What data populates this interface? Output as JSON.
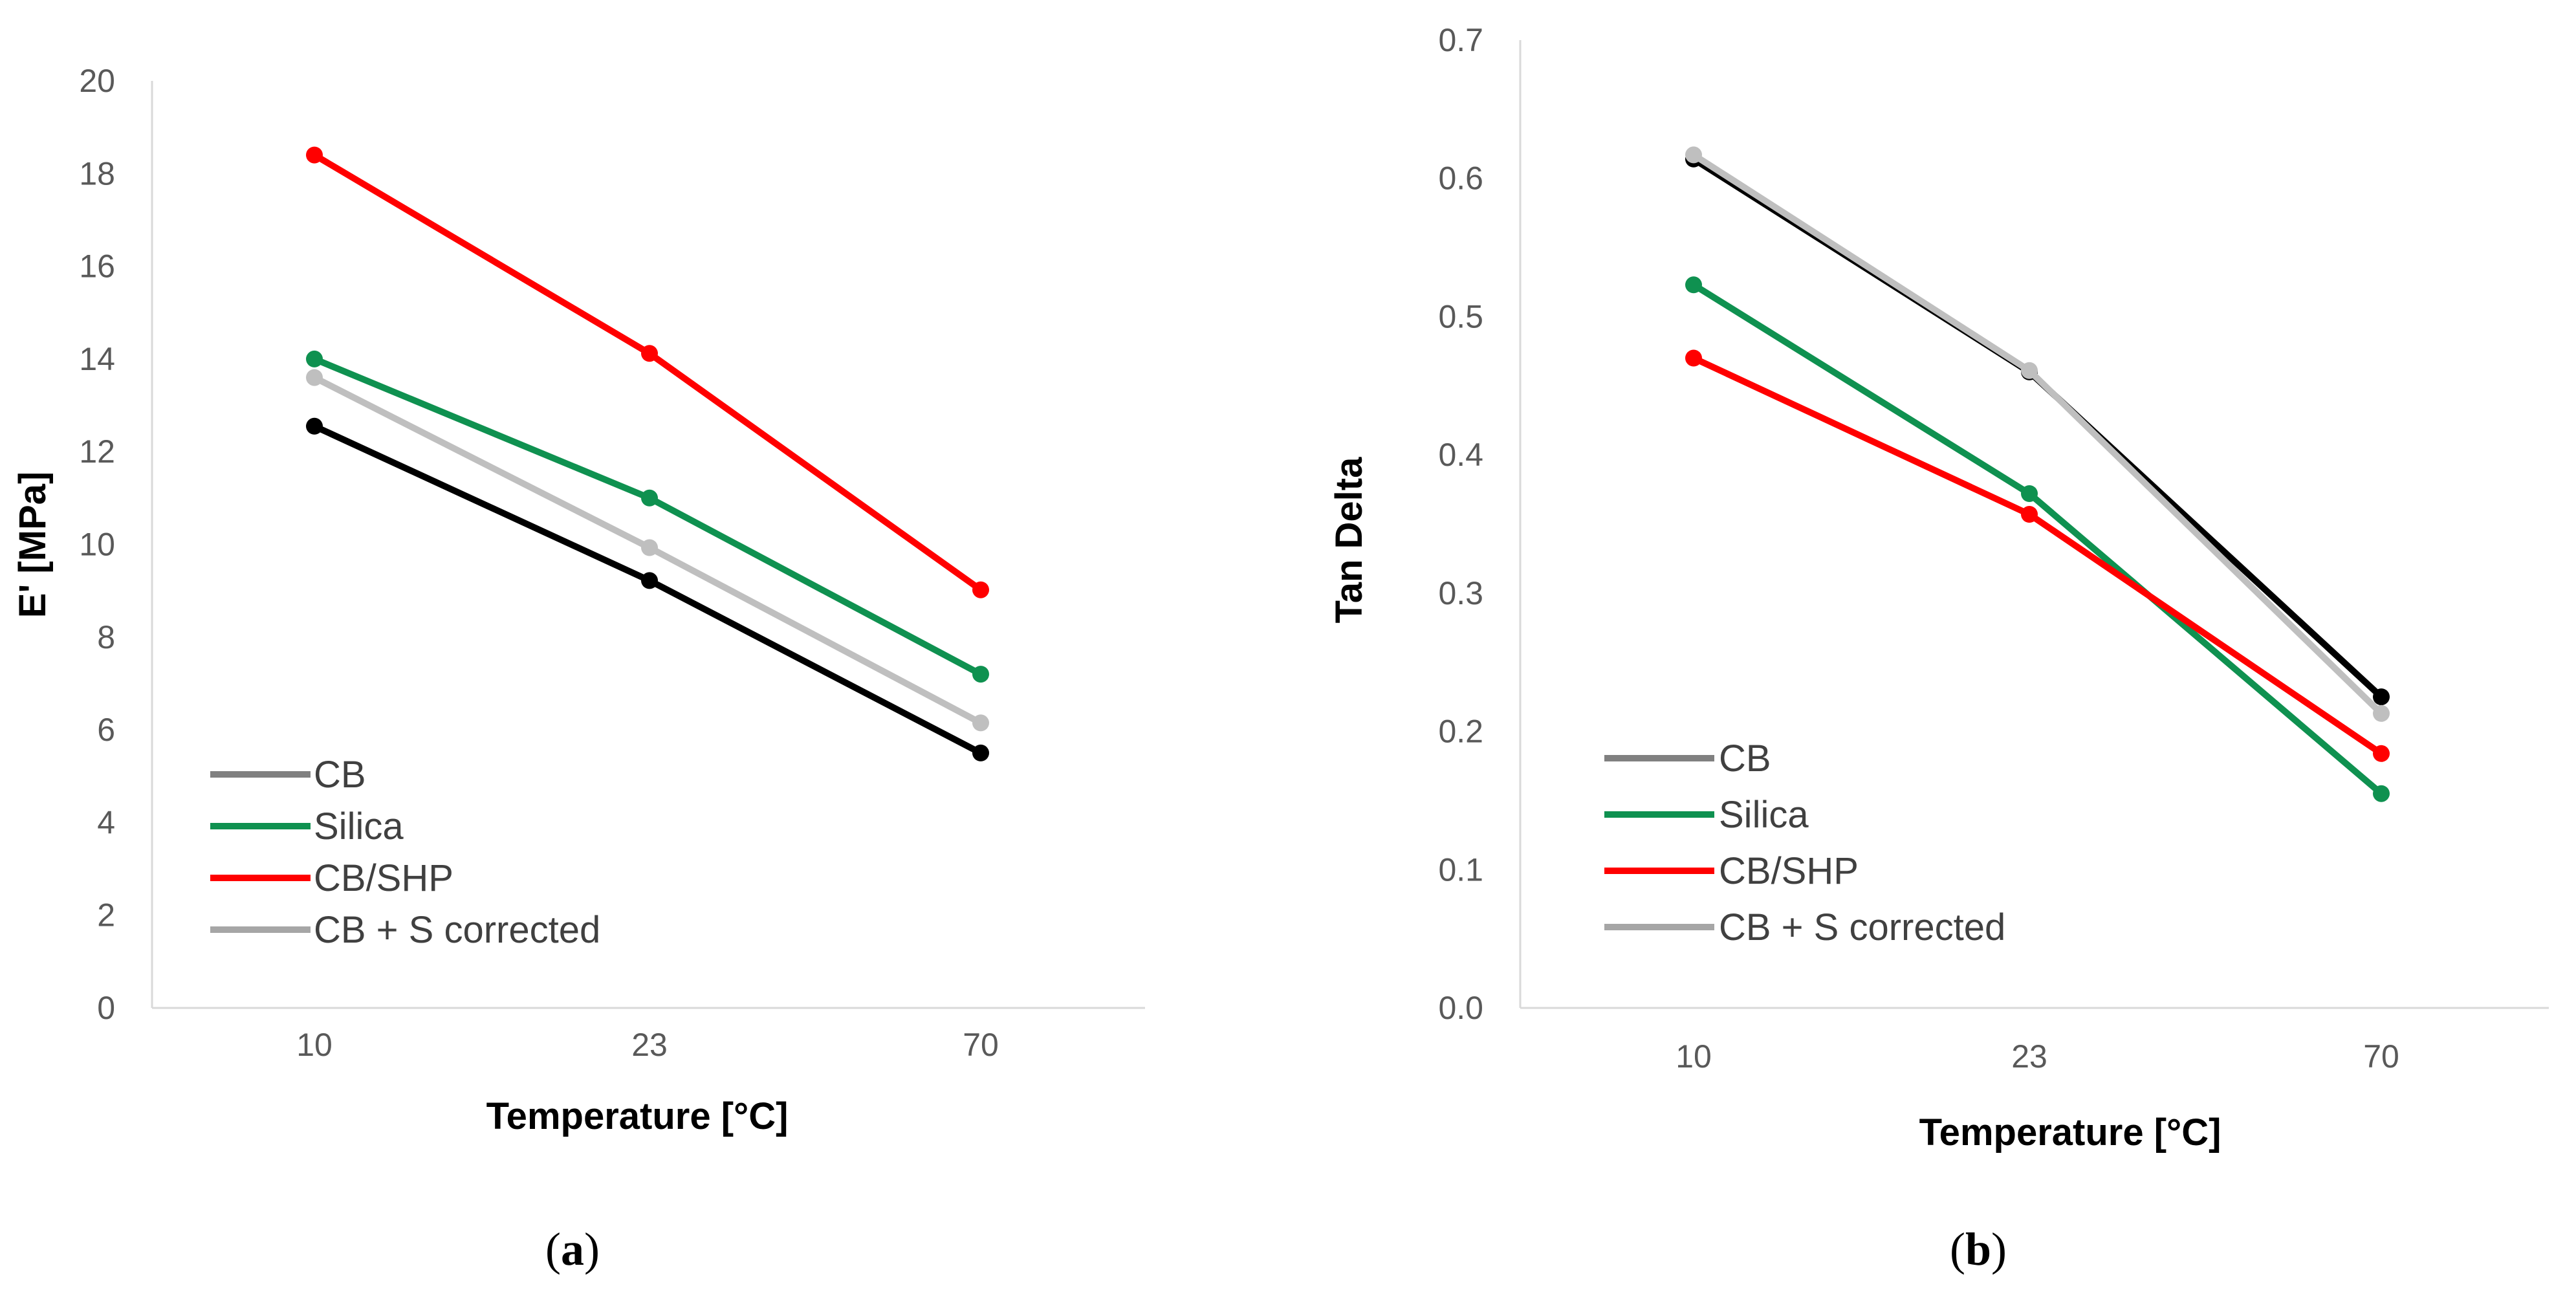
{
  "chart_data": [
    {
      "type": "line",
      "panel_label": "(a)",
      "panel_letter": "a",
      "categories": [
        "10",
        "23",
        "70"
      ],
      "xlabel": "Temperature [°C]",
      "ylabel": "E' [MPa]",
      "ylim": [
        0,
        20
      ],
      "yticks": [
        "0",
        "2",
        "4",
        "6",
        "8",
        "10",
        "12",
        "14",
        "16",
        "18",
        "20"
      ],
      "grid": false,
      "legend_position": "bottom-left",
      "series": [
        {
          "name": "CB",
          "color": "#000000",
          "legend_color": "#808080",
          "values": [
            12.55,
            9.22,
            5.5
          ]
        },
        {
          "name": "Silica",
          "color": "#0f9150",
          "legend_color": "#0f9150",
          "values": [
            14.0,
            11.0,
            7.2
          ]
        },
        {
          "name": "CB/SHP",
          "color": "#ff0000",
          "legend_color": "#ff0000",
          "values": [
            18.4,
            14.12,
            9.02
          ]
        },
        {
          "name": "CB + S corrected",
          "color": "#bfbfbf",
          "legend_color": "#a6a6a6",
          "values": [
            13.6,
            9.93,
            6.15
          ]
        }
      ]
    },
    {
      "type": "line",
      "panel_label": "(b)",
      "panel_letter": "b",
      "categories": [
        "10",
        "23",
        "70"
      ],
      "xlabel": "Temperature [°C]",
      "ylabel": "Tan Delta",
      "ylim": [
        0,
        0.7
      ],
      "yticks": [
        "0.0",
        "0.1",
        "0.2",
        "0.3",
        "0.4",
        "0.5",
        "0.6",
        "0.7"
      ],
      "grid": false,
      "legend_position": "bottom-left",
      "series": [
        {
          "name": "CB",
          "color": "#000000",
          "legend_color": "#808080",
          "values": [
            0.614,
            0.46,
            0.225
          ]
        },
        {
          "name": "Silica",
          "color": "#0f9150",
          "legend_color": "#0f9150",
          "values": [
            0.523,
            0.372,
            0.155
          ]
        },
        {
          "name": "CB/SHP",
          "color": "#ff0000",
          "legend_color": "#ff0000",
          "values": [
            0.47,
            0.357,
            0.184
          ]
        },
        {
          "name": "CB + S corrected",
          "color": "#bfbfbf",
          "legend_color": "#a6a6a6",
          "values": [
            0.617,
            0.461,
            0.213
          ]
        }
      ]
    }
  ]
}
